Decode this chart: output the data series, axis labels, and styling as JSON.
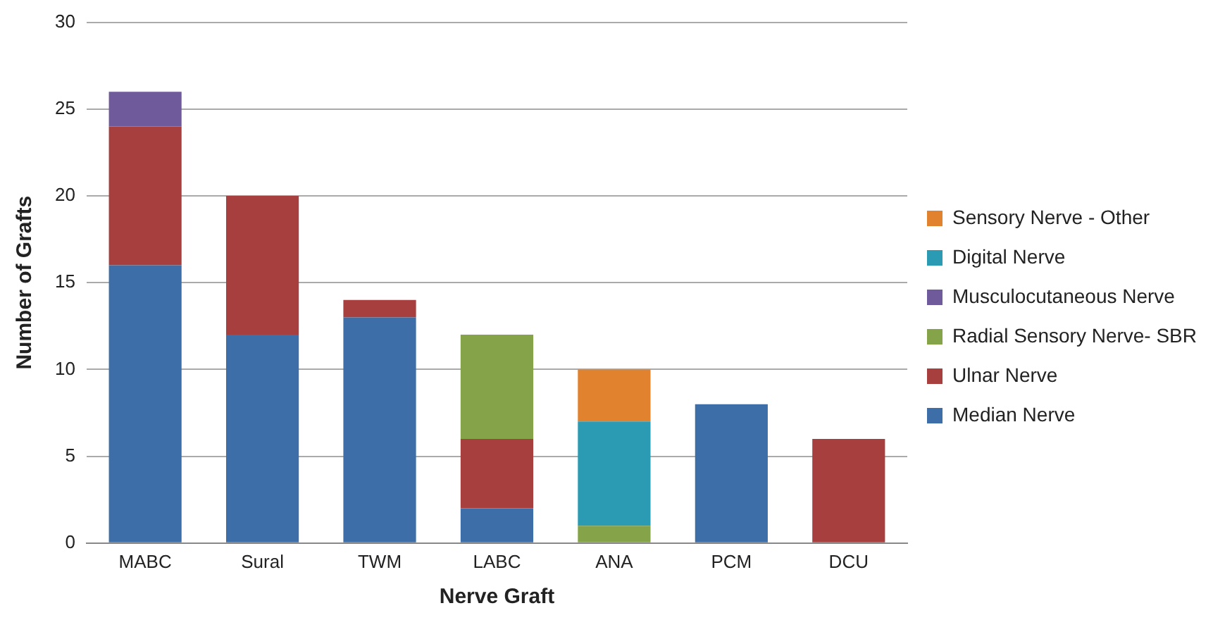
{
  "chart_data": {
    "type": "bar",
    "stacked": true,
    "xlabel": "Nerve Graft",
    "ylabel": "Number of Grafts",
    "categories": [
      "MABC",
      "Sural",
      "TWM",
      "LABC",
      "ANA",
      "PCM",
      "DCU"
    ],
    "series": [
      {
        "name": "Median Nerve",
        "color": "#3d6ea8",
        "values": [
          16,
          12,
          13,
          2,
          null,
          8,
          null
        ]
      },
      {
        "name": "Ulnar Nerve",
        "color": "#a83f3f",
        "values": [
          8,
          8,
          1,
          4,
          null,
          null,
          6
        ]
      },
      {
        "name": "Radial Sensory Nerve- SBR",
        "color": "#85a348",
        "values": [
          null,
          null,
          null,
          6,
          1,
          null,
          null
        ]
      },
      {
        "name": "Musculocutaneous Nerve",
        "color": "#6f5a9c",
        "values": [
          2,
          null,
          null,
          null,
          null,
          null,
          null
        ]
      },
      {
        "name": "Digital Nerve",
        "color": "#2b9ab3",
        "values": [
          null,
          null,
          null,
          null,
          6,
          null,
          null
        ]
      },
      {
        "name": "Sensory Nerve - Other",
        "color": "#e0822e",
        "values": [
          null,
          null,
          null,
          null,
          3,
          null,
          null
        ]
      }
    ],
    "ylim": [
      0,
      30
    ],
    "yticks": [
      0,
      5,
      10,
      15,
      20,
      25,
      30
    ],
    "grid": "y",
    "legend": "right"
  }
}
